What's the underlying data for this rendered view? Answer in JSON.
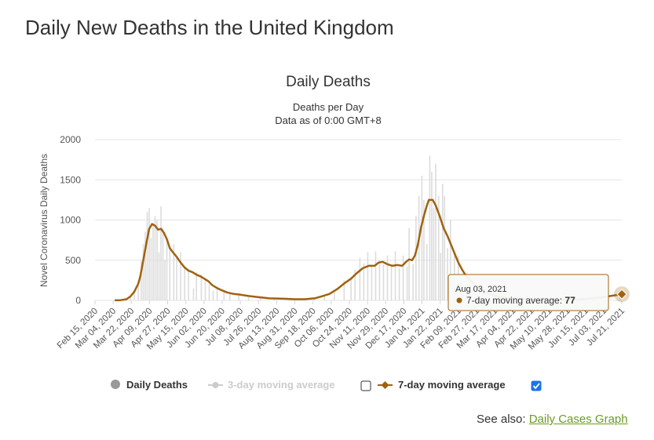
{
  "page": {
    "title": "Daily New Deaths in the United Kingdom",
    "see_also_label": "See also:",
    "see_also_link": "Daily Cases Graph"
  },
  "tooltip": {
    "date": "Aug 03, 2021",
    "series": "7-day moving average",
    "value": "77"
  },
  "legend": {
    "items": [
      {
        "label": "Daily Deaths",
        "marker": "circle",
        "color": "#999999",
        "enabled": true
      },
      {
        "label": "3-day moving average",
        "marker": "circle-line",
        "color": "#cccccc",
        "enabled": false,
        "checkbox_checked": false
      },
      {
        "label": "7-day moving average",
        "marker": "diamond-line",
        "color": "#a0620f",
        "enabled": true,
        "checkbox_checked": true
      }
    ]
  },
  "chart_data": {
    "type": "line",
    "title": "Daily Deaths",
    "subtitle_lines": [
      "Deaths per Day",
      "Data as of 0:00 GMT+8"
    ],
    "ylabel": "Novel Coronavirus Daily Deaths",
    "ylim": [
      0,
      2000
    ],
    "yticks": [
      0,
      500,
      1000,
      1500,
      2000
    ],
    "grid": true,
    "legend_position": "bottom",
    "x_tick_labels": [
      "Feb 15, 2020",
      "Mar 04, 2020",
      "Mar 22, 2020",
      "Apr 09, 2020",
      "Apr 27, 2020",
      "May 15, 2020",
      "Jun 02, 2020",
      "Jun 20, 2020",
      "Jul 08, 2020",
      "Jul 26, 2020",
      "Aug 13, 2020",
      "Aug 31, 2020",
      "Sep 18, 2020",
      "Oct 06, 2020",
      "Oct 24, 2020",
      "Nov 11, 2020",
      "Nov 29, 2020",
      "Dec 17, 2020",
      "Jan 04, 2021",
      "Jan 22, 2021",
      "Feb 09, 2021",
      "Feb 27, 2021",
      "Mar 17, 2021",
      "Apr 04, 2021",
      "Apr 22, 2021",
      "May 10, 2021",
      "May 28, 2021",
      "Jun 15, 2021",
      "Jul 03, 2021",
      "Jul 21, 2021"
    ],
    "x_start": "2020-02-15",
    "x_end": "2021-08-03",
    "colors": {
      "daily": "#dcdcdc",
      "avg7": "#a0620f",
      "avg3": "#cccccc",
      "grid": "#e6e6e6"
    },
    "series": [
      {
        "name": "Daily Deaths",
        "type": "bar",
        "points": [
          [
            "2020-03-06",
            2
          ],
          [
            "2020-03-12",
            5
          ],
          [
            "2020-03-18",
            30
          ],
          [
            "2020-03-22",
            50
          ],
          [
            "2020-03-26",
            120
          ],
          [
            "2020-03-30",
            250
          ],
          [
            "2020-04-02",
            500
          ],
          [
            "2020-04-04",
            700
          ],
          [
            "2020-04-06",
            850
          ],
          [
            "2020-04-08",
            1100
          ],
          [
            "2020-04-10",
            1150
          ],
          [
            "2020-04-12",
            780
          ],
          [
            "2020-04-14",
            950
          ],
          [
            "2020-04-16",
            1050
          ],
          [
            "2020-04-18",
            1000
          ],
          [
            "2020-04-20",
            600
          ],
          [
            "2020-04-22",
            1170
          ],
          [
            "2020-04-24",
            900
          ],
          [
            "2020-04-26",
            500
          ],
          [
            "2020-04-28",
            750
          ],
          [
            "2020-05-01",
            650
          ],
          [
            "2020-05-05",
            700
          ],
          [
            "2020-05-08",
            530
          ],
          [
            "2020-05-12",
            600
          ],
          [
            "2020-05-16",
            420
          ],
          [
            "2020-05-20",
            390
          ],
          [
            "2020-05-25",
            150
          ],
          [
            "2020-05-28",
            350
          ],
          [
            "2020-06-02",
            320
          ],
          [
            "2020-06-06",
            250
          ],
          [
            "2020-06-10",
            200
          ],
          [
            "2020-06-14",
            120
          ],
          [
            "2020-06-18",
            150
          ],
          [
            "2020-06-25",
            130
          ],
          [
            "2020-07-01",
            90
          ],
          [
            "2020-07-10",
            60
          ],
          [
            "2020-07-20",
            40
          ],
          [
            "2020-08-01",
            25
          ],
          [
            "2020-08-15",
            15
          ],
          [
            "2020-09-01",
            10
          ],
          [
            "2020-09-15",
            15
          ],
          [
            "2020-09-25",
            30
          ],
          [
            "2020-10-05",
            60
          ],
          [
            "2020-10-15",
            130
          ],
          [
            "2020-10-25",
            250
          ],
          [
            "2020-11-01",
            290
          ],
          [
            "2020-11-05",
            380
          ],
          [
            "2020-11-10",
            530
          ],
          [
            "2020-11-14",
            460
          ],
          [
            "2020-11-18",
            600
          ],
          [
            "2020-11-22",
            420
          ],
          [
            "2020-11-26",
            610
          ],
          [
            "2020-11-30",
            500
          ],
          [
            "2020-12-04",
            450
          ],
          [
            "2020-12-08",
            560
          ],
          [
            "2020-12-12",
            430
          ],
          [
            "2020-12-16",
            610
          ],
          [
            "2020-12-20",
            400
          ],
          [
            "2020-12-24",
            560
          ],
          [
            "2020-12-28",
            420
          ],
          [
            "2020-12-30",
            900
          ],
          [
            "2021-01-03",
            450
          ],
          [
            "2021-01-06",
            1050
          ],
          [
            "2021-01-09",
            1300
          ],
          [
            "2021-01-12",
            1550
          ],
          [
            "2021-01-14",
            1250
          ],
          [
            "2021-01-17",
            700
          ],
          [
            "2021-01-20",
            1800
          ],
          [
            "2021-01-22",
            1600
          ],
          [
            "2021-01-24",
            1150
          ],
          [
            "2021-01-26",
            1700
          ],
          [
            "2021-01-29",
            1300
          ],
          [
            "2021-01-31",
            590
          ],
          [
            "2021-02-02",
            1450
          ],
          [
            "2021-02-04",
            1300
          ],
          [
            "2021-02-07",
            650
          ],
          [
            "2021-02-10",
            1000
          ],
          [
            "2021-02-14",
            600
          ],
          [
            "2021-02-18",
            550
          ],
          [
            "2021-02-22",
            220
          ],
          [
            "2021-02-26",
            340
          ],
          [
            "2021-03-02",
            300
          ],
          [
            "2021-03-08",
            100
          ],
          [
            "2021-03-15",
            80
          ],
          [
            "2021-03-25",
            40
          ],
          [
            "2021-04-10",
            20
          ],
          [
            "2021-05-01",
            10
          ],
          [
            "2021-06-01",
            8
          ],
          [
            "2021-07-01",
            20
          ],
          [
            "2021-07-20",
            80
          ],
          [
            "2021-08-01",
            90
          ]
        ]
      },
      {
        "name": "7-day moving average",
        "type": "line",
        "points": [
          [
            "2020-03-06",
            1
          ],
          [
            "2020-03-12",
            3
          ],
          [
            "2020-03-18",
            15
          ],
          [
            "2020-03-22",
            50
          ],
          [
            "2020-03-26",
            110
          ],
          [
            "2020-03-30",
            210
          ],
          [
            "2020-04-01",
            300
          ],
          [
            "2020-04-04",
            500
          ],
          [
            "2020-04-07",
            700
          ],
          [
            "2020-04-10",
            890
          ],
          [
            "2020-04-13",
            950
          ],
          [
            "2020-04-16",
            930
          ],
          [
            "2020-04-19",
            880
          ],
          [
            "2020-04-22",
            890
          ],
          [
            "2020-04-25",
            840
          ],
          [
            "2020-04-28",
            760
          ],
          [
            "2020-05-01",
            650
          ],
          [
            "2020-05-04",
            600
          ],
          [
            "2020-05-08",
            540
          ],
          [
            "2020-05-12",
            470
          ],
          [
            "2020-05-16",
            410
          ],
          [
            "2020-05-20",
            370
          ],
          [
            "2020-05-24",
            350
          ],
          [
            "2020-05-28",
            320
          ],
          [
            "2020-06-01",
            300
          ],
          [
            "2020-06-05",
            270
          ],
          [
            "2020-06-09",
            240
          ],
          [
            "2020-06-13",
            190
          ],
          [
            "2020-06-17",
            160
          ],
          [
            "2020-06-22",
            130
          ],
          [
            "2020-06-28",
            100
          ],
          [
            "2020-07-05",
            80
          ],
          [
            "2020-07-12",
            70
          ],
          [
            "2020-07-20",
            55
          ],
          [
            "2020-07-30",
            40
          ],
          [
            "2020-08-10",
            25
          ],
          [
            "2020-08-25",
            20
          ],
          [
            "2020-09-05",
            15
          ],
          [
            "2020-09-15",
            15
          ],
          [
            "2020-09-25",
            25
          ],
          [
            "2020-10-02",
            50
          ],
          [
            "2020-10-10",
            80
          ],
          [
            "2020-10-18",
            140
          ],
          [
            "2020-10-25",
            210
          ],
          [
            "2020-11-01",
            270
          ],
          [
            "2020-11-07",
            340
          ],
          [
            "2020-11-13",
            400
          ],
          [
            "2020-11-19",
            430
          ],
          [
            "2020-11-25",
            430
          ],
          [
            "2020-11-29",
            470
          ],
          [
            "2020-12-03",
            480
          ],
          [
            "2020-12-08",
            450
          ],
          [
            "2020-12-13",
            430
          ],
          [
            "2020-12-18",
            440
          ],
          [
            "2020-12-23",
            430
          ],
          [
            "2020-12-27",
            480
          ],
          [
            "2020-12-30",
            510
          ],
          [
            "2021-01-02",
            500
          ],
          [
            "2021-01-05",
            560
          ],
          [
            "2021-01-08",
            700
          ],
          [
            "2021-01-11",
            900
          ],
          [
            "2021-01-14",
            1050
          ],
          [
            "2021-01-17",
            1180
          ],
          [
            "2021-01-19",
            1250
          ],
          [
            "2021-01-23",
            1250
          ],
          [
            "2021-01-26",
            1180
          ],
          [
            "2021-01-30",
            1050
          ],
          [
            "2021-02-03",
            900
          ],
          [
            "2021-02-07",
            800
          ],
          [
            "2021-02-11",
            680
          ],
          [
            "2021-02-15",
            560
          ],
          [
            "2021-02-18",
            470
          ],
          [
            "2021-02-22",
            380
          ],
          [
            "2021-02-26",
            300
          ],
          [
            "2021-03-03",
            240
          ],
          [
            "2021-03-08",
            180
          ],
          [
            "2021-03-13",
            130
          ],
          [
            "2021-03-20",
            90
          ],
          [
            "2021-03-28",
            55
          ],
          [
            "2021-04-08",
            30
          ],
          [
            "2021-04-20",
            20
          ],
          [
            "2021-05-10",
            10
          ],
          [
            "2021-06-01",
            8
          ],
          [
            "2021-06-20",
            12
          ],
          [
            "2021-07-05",
            25
          ],
          [
            "2021-07-15",
            40
          ],
          [
            "2021-07-25",
            60
          ],
          [
            "2021-08-03",
            77
          ]
        ]
      }
    ]
  }
}
